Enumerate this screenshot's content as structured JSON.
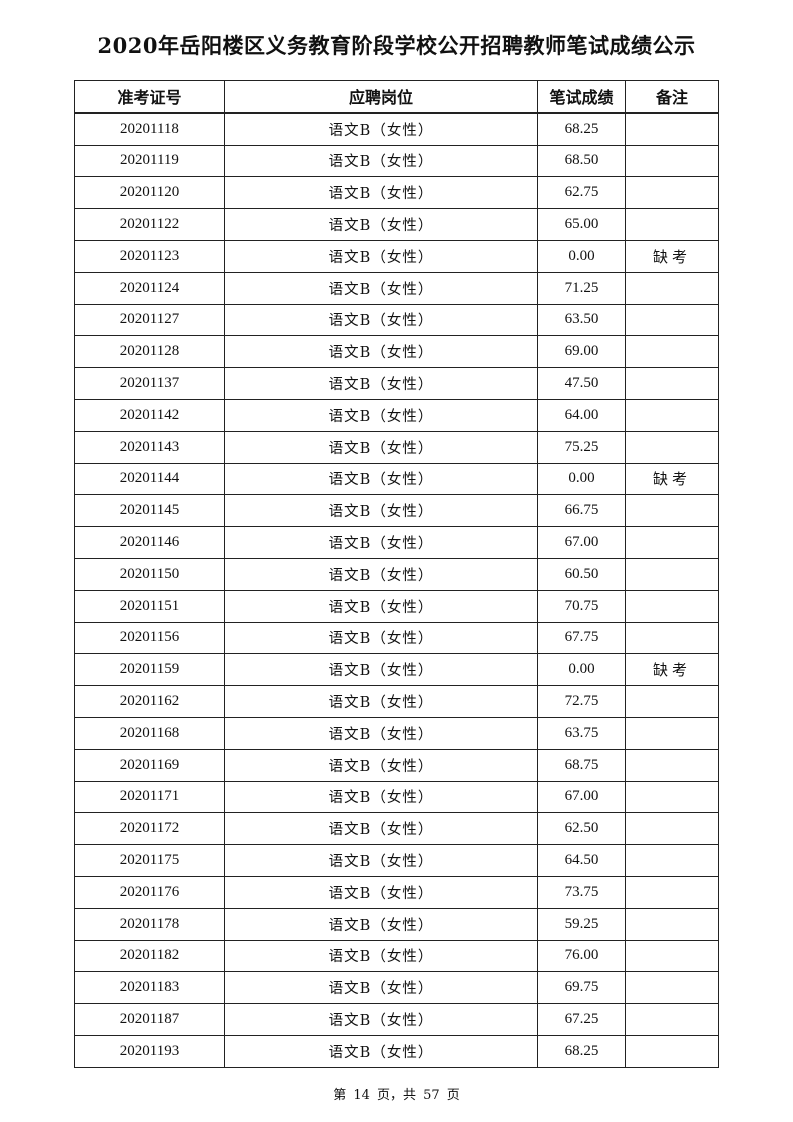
{
  "title": "2020年岳阳楼区义务教育阶段学校公开招聘教师笔试成绩公示",
  "table": {
    "headers": [
      "准考证号",
      "应聘岗位",
      "笔试成绩",
      "备注"
    ],
    "rows": [
      [
        "20201118",
        "语文B（女性）",
        "68.25",
        ""
      ],
      [
        "20201119",
        "语文B（女性）",
        "68.50",
        ""
      ],
      [
        "20201120",
        "语文B（女性）",
        "62.75",
        ""
      ],
      [
        "20201122",
        "语文B（女性）",
        "65.00",
        ""
      ],
      [
        "20201123",
        "语文B（女性）",
        "0.00",
        "缺考"
      ],
      [
        "20201124",
        "语文B（女性）",
        "71.25",
        ""
      ],
      [
        "20201127",
        "语文B（女性）",
        "63.50",
        ""
      ],
      [
        "20201128",
        "语文B（女性）",
        "69.00",
        ""
      ],
      [
        "20201137",
        "语文B（女性）",
        "47.50",
        ""
      ],
      [
        "20201142",
        "语文B（女性）",
        "64.00",
        ""
      ],
      [
        "20201143",
        "语文B（女性）",
        "75.25",
        ""
      ],
      [
        "20201144",
        "语文B（女性）",
        "0.00",
        "缺考"
      ],
      [
        "20201145",
        "语文B（女性）",
        "66.75",
        ""
      ],
      [
        "20201146",
        "语文B（女性）",
        "67.00",
        ""
      ],
      [
        "20201150",
        "语文B（女性）",
        "60.50",
        ""
      ],
      [
        "20201151",
        "语文B（女性）",
        "70.75",
        ""
      ],
      [
        "20201156",
        "语文B（女性）",
        "67.75",
        ""
      ],
      [
        "20201159",
        "语文B（女性）",
        "0.00",
        "缺考"
      ],
      [
        "20201162",
        "语文B（女性）",
        "72.75",
        ""
      ],
      [
        "20201168",
        "语文B（女性）",
        "63.75",
        ""
      ],
      [
        "20201169",
        "语文B（女性）",
        "68.75",
        ""
      ],
      [
        "20201171",
        "语文B（女性）",
        "67.00",
        ""
      ],
      [
        "20201172",
        "语文B（女性）",
        "62.50",
        ""
      ],
      [
        "20201175",
        "语文B（女性）",
        "64.50",
        ""
      ],
      [
        "20201176",
        "语文B（女性）",
        "73.75",
        ""
      ],
      [
        "20201178",
        "语文B（女性）",
        "59.25",
        ""
      ],
      [
        "20201182",
        "语文B（女性）",
        "76.00",
        ""
      ],
      [
        "20201183",
        "语文B（女性）",
        "69.75",
        ""
      ],
      [
        "20201187",
        "语文B（女性）",
        "67.25",
        ""
      ],
      [
        "20201193",
        "语文B（女性）",
        "68.25",
        ""
      ]
    ]
  },
  "footer": "第 14 页，共 57 页"
}
